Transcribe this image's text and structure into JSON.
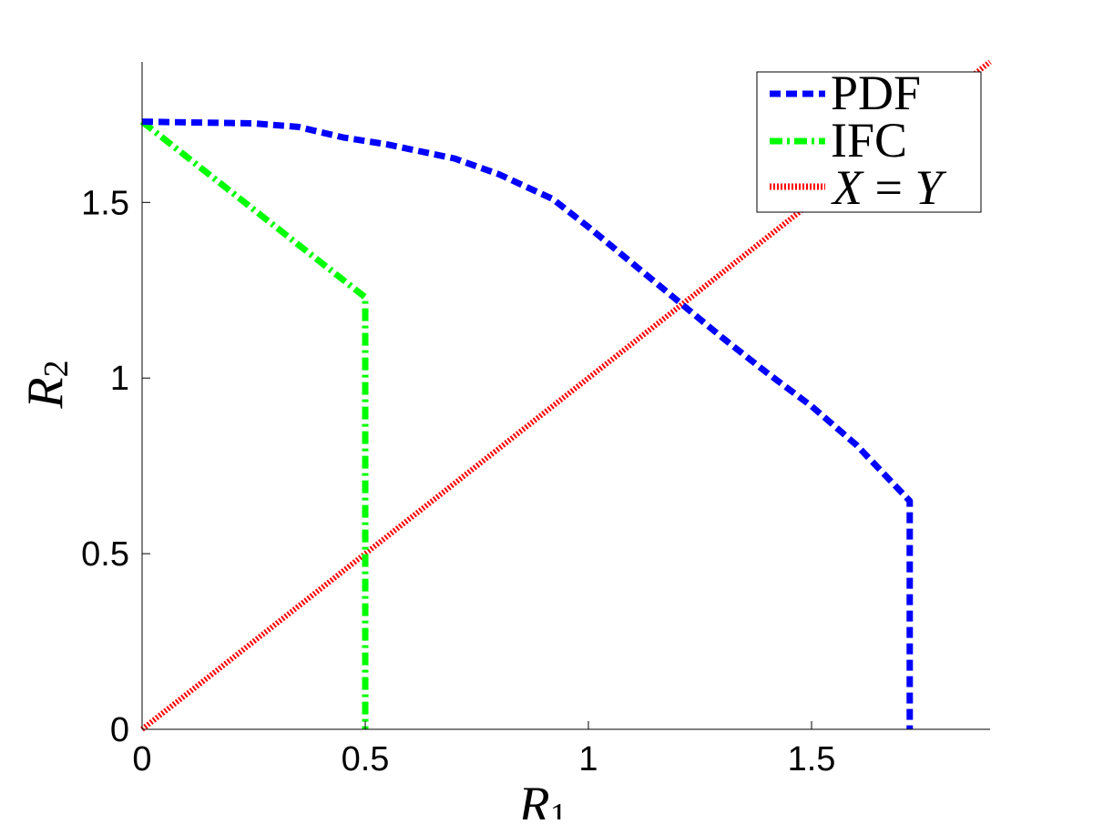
{
  "chart_data": {
    "type": "line",
    "title": "",
    "xlabel": "R",
    "xlabel_sub": "1",
    "ylabel": "R",
    "ylabel_sub": "2",
    "xlim": [
      0,
      1.9
    ],
    "ylim": [
      0,
      1.9
    ],
    "xticks": [
      "0",
      "0.5",
      "1",
      "1.5"
    ],
    "xtick_values": [
      0,
      0.5,
      1,
      1.5
    ],
    "yticks": [
      "0",
      "0.5",
      "1",
      "1.5"
    ],
    "ytick_values": [
      0,
      0.5,
      1,
      1.5
    ],
    "grid": false,
    "legend_position": "top-right",
    "series": [
      {
        "name": "PDF",
        "color": "#0000ff",
        "style": "dashed",
        "x": [
          0,
          0.1,
          0.25,
          0.35,
          0.45,
          0.55,
          0.7,
          0.8,
          0.92,
          1.0,
          1.1,
          1.2,
          1.3,
          1.4,
          1.5,
          1.6,
          1.72,
          1.72
        ],
        "y": [
          1.73,
          1.728,
          1.725,
          1.715,
          1.685,
          1.665,
          1.625,
          1.58,
          1.51,
          1.43,
          1.325,
          1.22,
          1.115,
          1.015,
          0.92,
          0.81,
          0.65,
          0
        ]
      },
      {
        "name": "IFC",
        "color": "#00ff00",
        "style": "dashdot",
        "x": [
          0,
          0.5,
          0.5
        ],
        "y": [
          1.73,
          1.23,
          0
        ]
      },
      {
        "name": "X = Y",
        "legend_parts": [
          "X",
          " = ",
          "Y"
        ],
        "color": "#ff0000",
        "style": "dotted",
        "x": [
          0,
          1.9
        ],
        "y": [
          0,
          1.9
        ]
      }
    ]
  }
}
